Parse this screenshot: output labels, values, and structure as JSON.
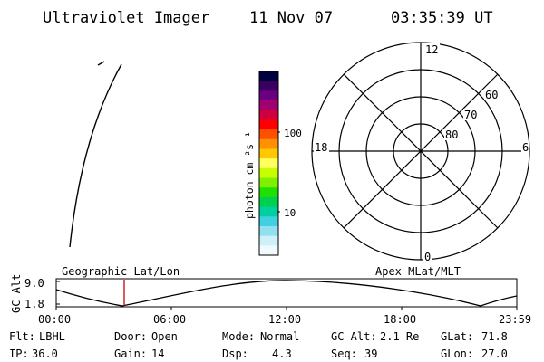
{
  "header": {
    "instrument": "Ultraviolet Imager",
    "date": "11 Nov 07",
    "time": "03:35:39 UT"
  },
  "colorbar": {
    "label": "photon cm⁻²s⁻¹",
    "ticks": [
      "100",
      "10"
    ],
    "colors": [
      "#000040",
      "#3a0060",
      "#6a0080",
      "#a00070",
      "#d00040",
      "#ff0000",
      "#ff5000",
      "#ff9000",
      "#ffc800",
      "#ffff60",
      "#c8ff00",
      "#80f000",
      "#20e000",
      "#00d050",
      "#00d0a0",
      "#40d0e0",
      "#90e0f0",
      "#d0f0f8",
      "#f0fafc"
    ]
  },
  "polar_plot": {
    "mlt_labels": {
      "top": "12",
      "left": "18",
      "right": "6",
      "bottom": "0"
    },
    "lat_labels": [
      "60",
      "70",
      "80"
    ]
  },
  "orbit_plot": {
    "left_title": "Geographic Lat/Lon",
    "right_title": "Apex MLat/MLT",
    "y_axis_label": "GC Alt",
    "y_ticks": [
      "9.0",
      "1.8"
    ],
    "x_ticks": [
      "00:00",
      "06:00",
      "12:00",
      "18:00",
      "23:59"
    ],
    "current_time_marker_color": "#cc0000"
  },
  "status": {
    "filter": {
      "label": "Flt:",
      "value": "LBHL"
    },
    "ip": {
      "label": "IP:",
      "value": "36.0"
    },
    "door": {
      "label": "Door:",
      "value": "Open"
    },
    "gain": {
      "label": "Gain:",
      "value": "14"
    },
    "mode": {
      "label": "Mode:",
      "value": "Normal"
    },
    "dsp": {
      "label": "Dsp:",
      "value": "4.3"
    },
    "gc_alt": {
      "label": "GC Alt:",
      "value": "2.1 Re"
    },
    "seq": {
      "label": "Seq:",
      "value": "39"
    },
    "glat": {
      "label": "GLat:",
      "value": "71.8"
    },
    "glon": {
      "label": "GLon:",
      "value": "27.0"
    }
  }
}
